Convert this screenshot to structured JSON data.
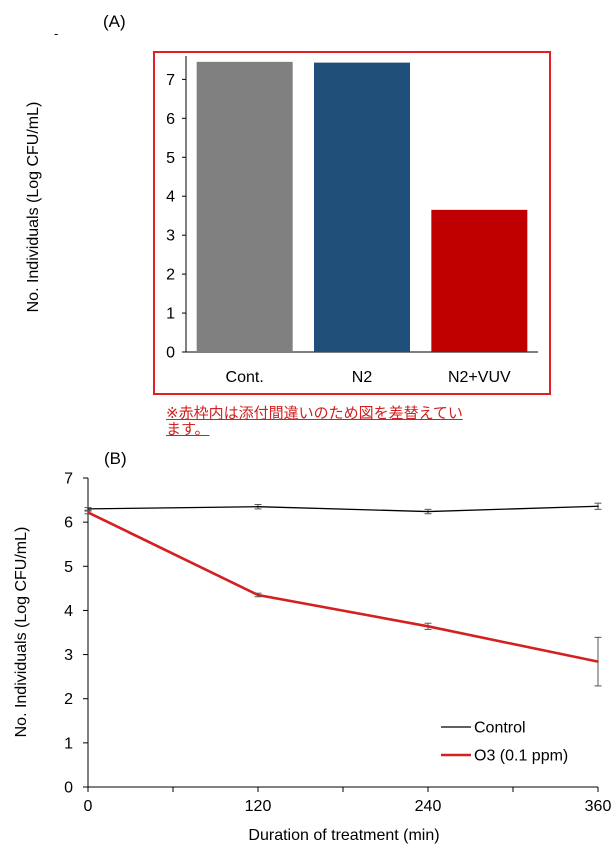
{
  "panel_a_label": "(A)",
  "panel_b_label": "(B)",
  "stray_mark": "-",
  "note_text": "※赤枠内は添付間違いのため図を差替えています。",
  "colors": {
    "cont": "#808080",
    "n2": "#1f4e79",
    "n2vuv": "#c00000",
    "frame": "#e31e24",
    "control_line": "#000000",
    "o3_line": "#d42020",
    "note": "#d0201f"
  },
  "chart_data": [
    {
      "type": "bar",
      "title": "",
      "xlabel": "",
      "ylabel": "No. Individuals (Log CFU/mL)",
      "categories": [
        "Cont.",
        "N2",
        "N2+VUV"
      ],
      "values": [
        7.45,
        7.43,
        3.65
      ],
      "ylim": [
        0,
        7.6
      ],
      "yticks": [
        "0",
        "1",
        "2",
        "3",
        "4",
        "5",
        "6",
        "7"
      ],
      "grid": false
    },
    {
      "type": "line",
      "title": "",
      "xlabel": "Duration of treatment (min)",
      "ylabel": "No. Individuals (Log CFU/mL)",
      "x": [
        0,
        120,
        240,
        360
      ],
      "xticks": [
        "0",
        "120",
        "240",
        "360"
      ],
      "yticks": [
        "0",
        "1",
        "2",
        "3",
        "4",
        "5",
        "6",
        "7"
      ],
      "xlim": [
        0,
        360
      ],
      "ylim": [
        0,
        7
      ],
      "grid": false,
      "legend_position": "bottom-right",
      "series": [
        {
          "name": "Control",
          "values": [
            6.3,
            6.35,
            6.24,
            6.36
          ],
          "errors": [
            0.03,
            0.05,
            0.05,
            0.07
          ]
        },
        {
          "name": "O3 (0.1 ppm)",
          "values": [
            6.22,
            4.35,
            3.64,
            2.84
          ],
          "errors": [
            0.03,
            0.04,
            0.07,
            0.55
          ]
        }
      ]
    }
  ]
}
